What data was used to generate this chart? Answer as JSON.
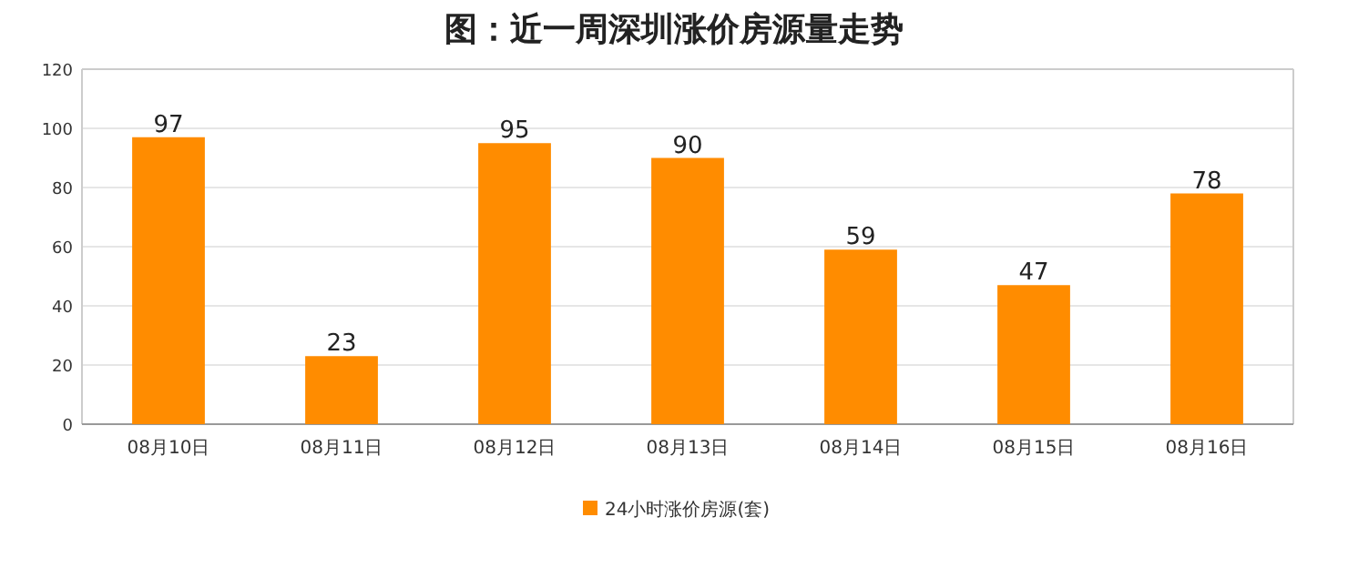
{
  "chart_data": {
    "type": "bar",
    "title": "图：近一周深圳涨价房源量走势",
    "categories": [
      "08月10日",
      "08月11日",
      "08月12日",
      "08月13日",
      "08月14日",
      "08月15日",
      "08月16日"
    ],
    "series": [
      {
        "name": "24小时涨价房源(套)",
        "color": "#ff8c00",
        "values": [
          97,
          23,
          95,
          90,
          59,
          47,
          78
        ]
      }
    ],
    "ylim": [
      0,
      120
    ],
    "yticks": [
      0,
      20,
      40,
      60,
      80,
      100,
      120
    ],
    "grid": "y",
    "legend": "bottom",
    "data_labels": true
  }
}
